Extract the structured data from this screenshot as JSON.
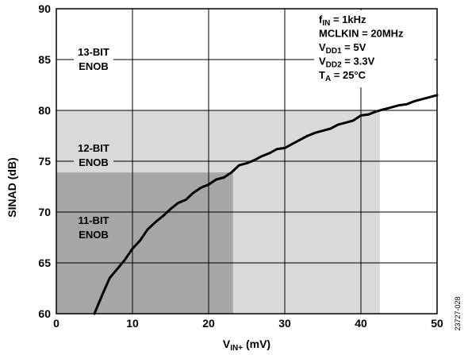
{
  "chart_data": {
    "type": "line",
    "xlabel_main": "V",
    "xlabel_sub": "IN+",
    "xlabel_unit": " (mV)",
    "ylabel": "SINAD (dB)",
    "xlim": [
      0,
      50
    ],
    "ylim": [
      60,
      90
    ],
    "x_ticks": [
      "0",
      "10",
      "20",
      "30",
      "40",
      "50"
    ],
    "y_ticks": [
      "60",
      "65",
      "70",
      "75",
      "80",
      "85",
      "90"
    ],
    "grid": true,
    "figure_id": "23727-028",
    "conditions": [
      {
        "main": "f",
        "sub": "IN",
        "rest": " = 1kHz"
      },
      {
        "main": "MCLKIN = 20MHz",
        "sub": "",
        "rest": ""
      },
      {
        "main": "V",
        "sub": "DD1",
        "rest": " = 5V"
      },
      {
        "main": "V",
        "sub": "DD2",
        "rest": " = 3.3V"
      },
      {
        "main": "T",
        "sub": "A",
        "rest": " = 25°C"
      }
    ],
    "regions": [
      {
        "name": "13-BIT ENOB",
        "line1": "13-BIT",
        "line2": "ENOB",
        "x_max": 50,
        "y_min": 80,
        "y_max": 90,
        "color": "#ffffff"
      },
      {
        "name": "12-BIT ENOB",
        "line1": "12-BIT",
        "line2": "ENOB",
        "x_max": 42.5,
        "y_min": 60,
        "y_max": 80,
        "color": "#d9d9d9"
      },
      {
        "name": "11-BIT ENOB",
        "line1": "11-BIT",
        "line2": "ENOB",
        "x_max": 23.2,
        "y_min": 60,
        "y_max": 73.9,
        "color": "#a6a6a6"
      }
    ],
    "series": [
      {
        "color": "#000000",
        "x": [
          5,
          6,
          7,
          8,
          9,
          10,
          11,
          12,
          13,
          14,
          15,
          16,
          17,
          18,
          19,
          20,
          21,
          22,
          23,
          24,
          25,
          26,
          27,
          28,
          29,
          30,
          31,
          32,
          33,
          34,
          35,
          36,
          37,
          38,
          39,
          40,
          41,
          42,
          43,
          44,
          45,
          46,
          47,
          48,
          49,
          50
        ],
        "y": [
          60.0,
          61.8,
          63.5,
          64.4,
          65.3,
          66.4,
          67.2,
          68.3,
          69.0,
          69.6,
          70.3,
          70.9,
          71.2,
          71.9,
          72.4,
          72.7,
          73.2,
          73.4,
          73.9,
          74.6,
          74.8,
          75.1,
          75.5,
          75.8,
          76.2,
          76.3,
          76.7,
          77.1,
          77.5,
          77.8,
          78.0,
          78.2,
          78.6,
          78.8,
          79.0,
          79.5,
          79.6,
          79.9,
          80.1,
          80.3,
          80.5,
          80.6,
          80.9,
          81.1,
          81.3,
          81.5
        ]
      }
    ]
  }
}
